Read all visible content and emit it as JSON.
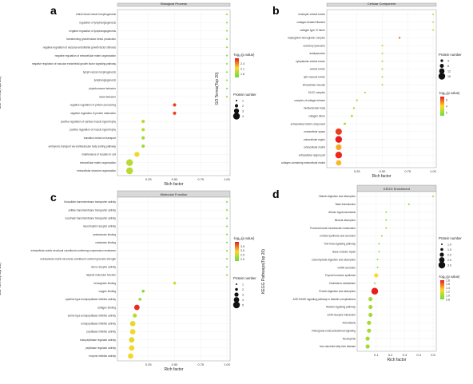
{
  "figure": {
    "panels": [
      "a",
      "b",
      "c",
      "d"
    ]
  },
  "chart_data": [
    {
      "panel": "a",
      "type": "scatter",
      "title": "Biological Process",
      "xlabel": "Rich factor",
      "ylabel": "GO Terms(Top 20)",
      "xticks": [
        "0.25",
        "0.50",
        "0.75",
        "1.00"
      ],
      "xlim": [
        0.0,
        1.0
      ],
      "grid": true,
      "color_legend_title": "-log₁₀(p value)",
      "color_ticks": [
        "1.8",
        "2.1",
        "2.4"
      ],
      "size_legend_title": "Protein number",
      "size_ticks": [
        "1",
        "2",
        "3",
        "4"
      ],
      "terms": [
        "retinol blood vessel morphogenesis",
        "regulation of lymphangiogenesis",
        "negative regulation of lymphangiogenesis",
        "transforming growth factor beta1 production",
        "negative regulation of vascular endothelial growth factor stimulus",
        "negative regulation of extracellular matrix organization",
        "negative regulation of vascular endothelial growth factor signaling pathway",
        "lymph vessel morphogenesis",
        "lymphangiogenesis",
        "phytohormone behavior",
        "molar behavior",
        "negative regulation of protein processing",
        "negative regulation of protein maturation",
        "positive regulation of cardiac muscle hypertrophy",
        "positive regulation of muscle hypertrophy",
        "transition metal ion transport",
        "embryonic transport via multivesicular body sorting pathway",
        "maintenance of location in cell",
        "extracellular matrix organization",
        "extracellular structure organization"
      ],
      "rich": [
        1.0,
        1.0,
        1.0,
        1.0,
        1.0,
        1.0,
        1.0,
        1.0,
        1.0,
        1.0,
        1.0,
        0.5,
        0.5,
        0.2,
        0.2,
        0.2,
        0.2,
        0.14,
        0.07,
        0.07
      ],
      "pval": [
        1.7,
        1.7,
        1.7,
        1.7,
        1.7,
        1.7,
        1.7,
        1.7,
        1.7,
        1.7,
        1.7,
        2.6,
        2.6,
        1.9,
        1.9,
        1.8,
        1.8,
        2.1,
        1.9,
        1.9
      ],
      "count": [
        1,
        1,
        1,
        1,
        1,
        1,
        1,
        1,
        1,
        1,
        1,
        2,
        2,
        2,
        2,
        2,
        2,
        3,
        4,
        4
      ],
      "color_range": [
        1.6,
        2.7
      ],
      "size_range": [
        1,
        4
      ]
    },
    {
      "panel": "b",
      "type": "scatter",
      "title": "Cellular Component",
      "xlabel": "Rich factor",
      "ylabel": "GO Terms(Top 20)",
      "xticks": [
        "0.25",
        "0.50",
        "0.75",
        "1.00"
      ],
      "xlim": [
        0.0,
        1.0
      ],
      "grid": true,
      "color_legend_title": "-log₁₀(p value)",
      "color_ticks": [
        "2",
        "4",
        "6"
      ],
      "size_legend_title": "Protein number",
      "size_ticks": [
        "4",
        "8",
        "12",
        "16"
      ],
      "terms": [
        "endocytic vesicle lumen",
        "collagen beaded filament",
        "collagen type VI trimer",
        "haptoglobin-hemoglobin complex",
        "secretory lysosome",
        "autolysosome",
        "cytoplasmic vesicle lumen",
        "vesicle lumen",
        "lytic vacuole lumen",
        "intracellular vacuole",
        "SLOC complex",
        "complex of collagen trimers",
        "multivesicular body",
        "collagen trimer",
        "extracellular matrix component",
        "extracellular space",
        "extracellular region",
        "extracellular matrix",
        "extracellular region part",
        "collagen-containing extracellular matrix"
      ],
      "rich": [
        1.0,
        1.0,
        1.0,
        0.67,
        0.5,
        0.5,
        0.5,
        0.5,
        0.5,
        0.5,
        0.33,
        0.25,
        0.22,
        0.2,
        0.13,
        0.07,
        0.07,
        0.07,
        0.07,
        0.07
      ],
      "pval": [
        2.5,
        2.5,
        2.5,
        5.5,
        2.0,
        2.0,
        2.0,
        2.0,
        2.0,
        2.0,
        1.6,
        2.3,
        2.2,
        2.6,
        2.0,
        6.5,
        7.0,
        4.8,
        6.8,
        4.5
      ],
      "count": [
        1,
        1,
        1,
        2,
        1,
        1,
        1,
        1,
        1,
        1,
        1,
        2,
        2,
        3,
        3,
        15,
        16,
        13,
        16,
        12
      ],
      "color_range": [
        1.0,
        7.0
      ],
      "size_range": [
        1,
        16
      ]
    },
    {
      "panel": "c",
      "type": "scatter",
      "title": "Molecular Function",
      "xlabel": "Rich factor",
      "ylabel": "GO Terms(Top 20)",
      "xticks": [
        "0.25",
        "0.50",
        "0.75",
        "1.00"
      ],
      "xlim": [
        0.0,
        1.0
      ],
      "grid": true,
      "color_legend_title": "-log₁₀(p value)",
      "color_ticks": [
        "2.0",
        "2.5",
        "3.0",
        "3.5"
      ],
      "size_legend_title": "Protein number",
      "size_ticks": [
        "1",
        "2",
        "3",
        "4",
        "5"
      ],
      "terms": [
        "thiosulfate transmembrane transporter activity",
        "sulfate transmembrane transporter activity",
        "succinate transmembrane transporter activity",
        "neurotrophin receptor activity",
        "ankerdaoxin binding",
        "cobalamin binding",
        "extracellular matrix structural constituent conferring compression resistance",
        "extracellular matrix structural constituent conferring tensile strength",
        "nerve receptor activity",
        "haptoid molecular function",
        "hemoglobin binding",
        "oxygen binding",
        "cysteine-type endopeptidase inhibitor activity",
        "collagen binding",
        "serine-type endopeptidase inhibitor activity",
        "endopeptidase inhibitor activity",
        "peptidase inhibitor activity",
        "endopeptidase regulator activity",
        "peptidase regulator activity",
        "enzyme inhibitor activity"
      ],
      "rich": [
        1.0,
        1.0,
        1.0,
        1.0,
        1.0,
        1.0,
        1.0,
        1.0,
        1.0,
        1.0,
        0.5,
        0.2,
        0.17,
        0.14,
        0.12,
        0.1,
        0.1,
        0.09,
        0.09,
        0.08
      ],
      "pval": [
        1.9,
        1.9,
        1.9,
        1.9,
        1.9,
        1.9,
        1.9,
        1.9,
        1.9,
        1.9,
        2.6,
        2.0,
        2.1,
        3.9,
        2.4,
        2.7,
        2.8,
        2.7,
        2.8,
        2.8
      ],
      "count": [
        1,
        1,
        1,
        1,
        1,
        1,
        1,
        1,
        1,
        1,
        2,
        2,
        2,
        4,
        3,
        4,
        4,
        4,
        4,
        4
      ],
      "color_range": [
        1.8,
        4.0
      ],
      "size_range": [
        1,
        5
      ]
    },
    {
      "panel": "d",
      "type": "scatter",
      "title": "KEGG Enrichment",
      "xlabel": "Rich factor",
      "ylabel": "KEGG Pathways(Top 20)",
      "xticks": [
        "0.1",
        "0.2",
        "0.3",
        "0.4",
        "0.5"
      ],
      "xlim": [
        0.0,
        0.5
      ],
      "grid": true,
      "color_legend_title": "-log₁₀(p value)",
      "color_ticks": [
        "1.8",
        "1.6",
        "1.4",
        "1.2",
        "1.0",
        "0.8"
      ],
      "size_legend_title": "Protein number",
      "size_ticks": [
        "1.0",
        "1.5",
        "2.0",
        "2.5",
        "3.0"
      ],
      "terms": [
        "Vitamin digestion and absorption",
        "Taste transduction",
        "African trypanosomiasis",
        "Mineral absorption",
        "Proximal tubule bicarbonate reclamation",
        "Cortisol synthesis and secretion",
        "TGF-beta signaling pathway",
        "Base excision repair",
        "Carbohydrate digestion and absorption",
        "GnRH secretion",
        "Thyroid hormone synthesis",
        "Cholesterol metabolism",
        "Protein digestion and absorption",
        "AGE-RAGE signaling pathway in diabetic complications",
        "Relaxin signaling pathway",
        "ECM-receptor interaction",
        "Amoebiasis",
        "Retrograde endocannabinoid signaling",
        "Neutrophils",
        "Non-alcoholic fatty liver disease"
      ],
      "rich": [
        0.5,
        0.33,
        0.17,
        0.17,
        0.17,
        0.14,
        0.12,
        0.12,
        0.11,
        0.11,
        0.1,
        0.09,
        0.09,
        0.06,
        0.06,
        0.06,
        0.05,
        0.05,
        0.04,
        0.04
      ],
      "pval": [
        0.9,
        0.8,
        0.9,
        0.9,
        0.9,
        0.9,
        0.9,
        0.9,
        0.9,
        0.9,
        1.3,
        0.9,
        1.8,
        1.0,
        1.0,
        1.0,
        1.0,
        1.0,
        1.0,
        1.0
      ],
      "count": [
        1,
        1,
        1,
        1,
        1,
        1,
        1,
        1,
        1,
        1,
        2,
        1,
        3,
        2,
        2,
        2,
        2,
        2,
        2,
        2
      ],
      "color_range": [
        0.8,
        1.8
      ],
      "size_range": [
        1,
        3
      ]
    }
  ]
}
